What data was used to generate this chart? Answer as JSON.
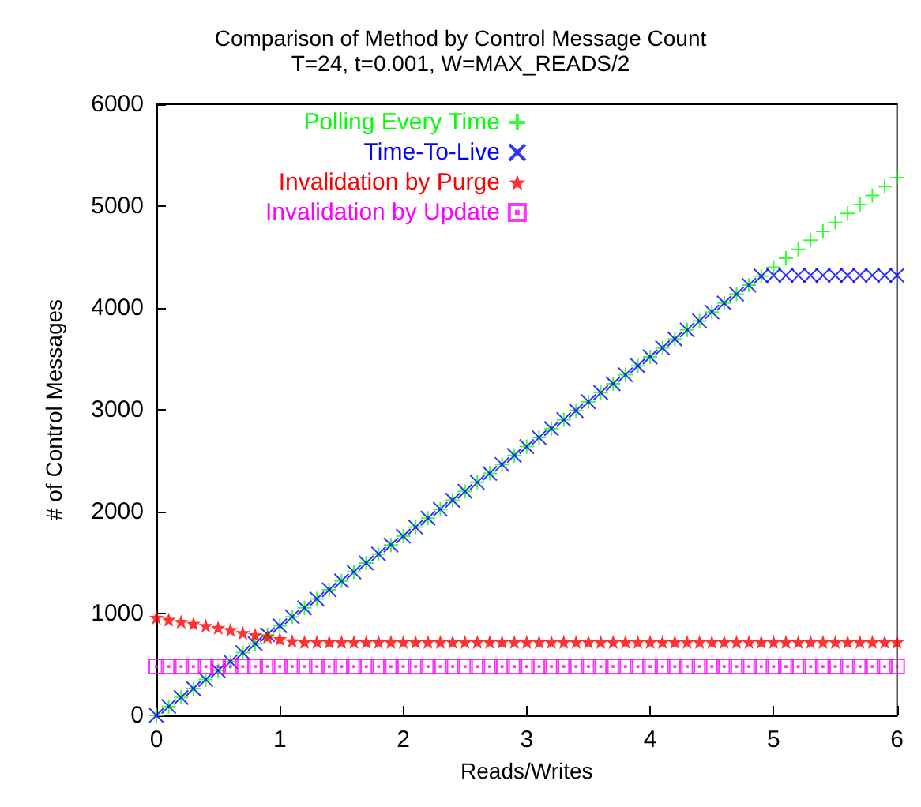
{
  "chart_data": {
    "type": "scatter",
    "title": "Comparison of Method by Control Message Count",
    "subtitle": "T=24, t=0.001, W=MAX_READS/2",
    "xlabel": "Reads/Writes",
    "ylabel": "# of Control Messages",
    "x": [
      0,
      0.1,
      0.2,
      0.3,
      0.4,
      0.5,
      0.6,
      0.7,
      0.8,
      0.9,
      1,
      1.1,
      1.2,
      1.3,
      1.4,
      1.5,
      1.6,
      1.7,
      1.8,
      1.9,
      2,
      2.1,
      2.2,
      2.3,
      2.4,
      2.5,
      2.6,
      2.7,
      2.8,
      2.9,
      3,
      3.1,
      3.2,
      3.3,
      3.4,
      3.5,
      3.6,
      3.7,
      3.8,
      3.9,
      4,
      4.1,
      4.2,
      4.3,
      4.4,
      4.5,
      4.6,
      4.7,
      4.8,
      4.9,
      5,
      5.1,
      5.2,
      5.3,
      5.4,
      5.5,
      5.6,
      5.7,
      5.8,
      5.9,
      6
    ],
    "series": [
      {
        "name": "Polling Every Time",
        "color": "#00ff00",
        "marker": "cross",
        "values": [
          0,
          88,
          176,
          264,
          352,
          440,
          528,
          616,
          704,
          792,
          880,
          968,
          1056,
          1144,
          1232,
          1320,
          1408,
          1496,
          1584,
          1672,
          1760,
          1848,
          1936,
          2024,
          2112,
          2200,
          2288,
          2376,
          2464,
          2552,
          2640,
          2728,
          2816,
          2904,
          2992,
          3080,
          3168,
          3256,
          3344,
          3432,
          3520,
          3608,
          3696,
          3784,
          3872,
          3960,
          4048,
          4136,
          4224,
          4312,
          4400,
          4488,
          4576,
          4664,
          4752,
          4840,
          4928,
          5016,
          5104,
          5192,
          5280
        ]
      },
      {
        "name": "Time-To-Live",
        "color": "#0000ff",
        "marker": "x",
        "values": [
          0,
          88,
          176,
          264,
          352,
          440,
          528,
          616,
          704,
          792,
          880,
          968,
          1056,
          1144,
          1232,
          1320,
          1408,
          1496,
          1584,
          1672,
          1760,
          1848,
          1936,
          2024,
          2112,
          2200,
          2288,
          2376,
          2464,
          2552,
          2640,
          2728,
          2816,
          2904,
          2992,
          3080,
          3168,
          3256,
          3344,
          3432,
          3520,
          3608,
          3696,
          3784,
          3872,
          3960,
          4048,
          4136,
          4224,
          4312,
          4320,
          4320,
          4320,
          4320,
          4320,
          4320,
          4320,
          4320,
          4320,
          4320,
          4320
        ]
      },
      {
        "name": "Invalidation by Purge",
        "color": "#ff0000",
        "marker": "star",
        "values": [
          960,
          940,
          920,
          900,
          880,
          860,
          840,
          810,
          790,
          770,
          750,
          730,
          720,
          720,
          720,
          720,
          720,
          720,
          720,
          720,
          720,
          720,
          720,
          720,
          720,
          720,
          720,
          720,
          720,
          720,
          720,
          720,
          720,
          720,
          720,
          720,
          720,
          720,
          720,
          720,
          720,
          720,
          720,
          720,
          720,
          720,
          720,
          720,
          720,
          720,
          720,
          720,
          720,
          720,
          720,
          720,
          720,
          720,
          720,
          720,
          720
        ]
      },
      {
        "name": "Invalidation by Update",
        "color": "#ff00ff",
        "marker": "square",
        "values": [
          480,
          480,
          480,
          480,
          480,
          480,
          480,
          480,
          480,
          480,
          480,
          480,
          480,
          480,
          480,
          480,
          480,
          480,
          480,
          480,
          480,
          480,
          480,
          480,
          480,
          480,
          480,
          480,
          480,
          480,
          480,
          480,
          480,
          480,
          480,
          480,
          480,
          480,
          480,
          480,
          480,
          480,
          480,
          480,
          480,
          480,
          480,
          480,
          480,
          480,
          480,
          480,
          480,
          480,
          480,
          480,
          480,
          480,
          480,
          480,
          480
        ]
      }
    ],
    "xlim": [
      0,
      6
    ],
    "xticks": [
      0,
      1,
      2,
      3,
      4,
      5,
      6
    ],
    "ylim": [
      0,
      6000
    ],
    "yticks": [
      0,
      1000,
      2000,
      3000,
      4000,
      5000,
      6000
    ],
    "grid": false,
    "legend": "top"
  }
}
